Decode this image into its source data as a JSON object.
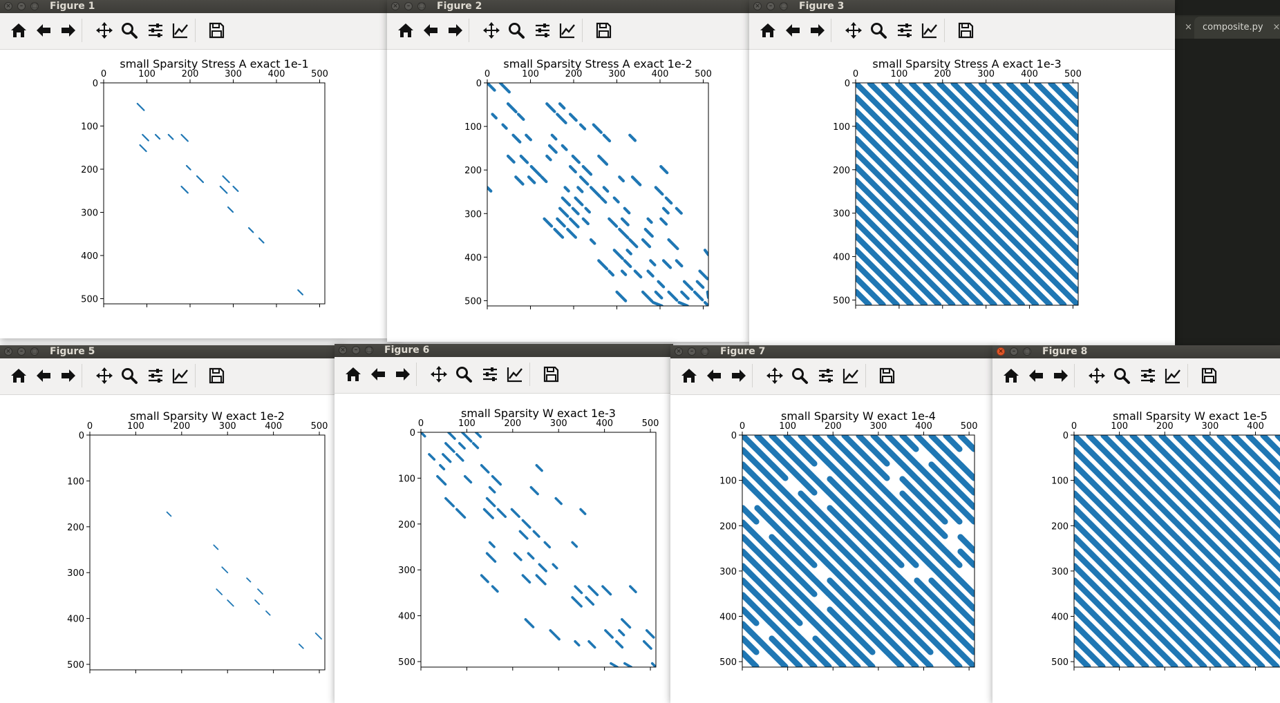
{
  "editor": {
    "tabs": [
      {
        "label": "composite.py",
        "close": "×"
      }
    ],
    "partial_tab_close": "×"
  },
  "colors": {
    "marker": "#1f77b4",
    "titlebar": "#3c3b37",
    "toolbar": "#f2f1f0",
    "close_active": "#e2582a"
  },
  "toolbar_icons": [
    "home-icon",
    "back-arrow-icon",
    "forward-arrow-icon",
    "pan-icon",
    "zoom-icon",
    "subplots-icon",
    "edit-axes-icon",
    "save-icon"
  ],
  "figures": [
    {
      "id": "fig1",
      "window_title": "Figure 1",
      "active": false,
      "chart_data": {
        "type": "scatter",
        "title": "small Sparsity Stress A exact 1e-1",
        "xticks": [
          "0",
          "100",
          "200",
          "300",
          "400",
          "500"
        ],
        "yticks": [
          "0",
          "100",
          "200",
          "300",
          "400",
          "500"
        ],
        "xlim": [
          0,
          512
        ],
        "ylim": [
          512,
          0
        ],
        "density": 0.12
      }
    },
    {
      "id": "fig2",
      "window_title": "Figure 2",
      "active": false,
      "chart_data": {
        "type": "scatter",
        "title": "small Sparsity Stress A exact 1e-2",
        "xticks": [
          "0",
          "100",
          "200",
          "300",
          "400",
          "500"
        ],
        "yticks": [
          "0",
          "100",
          "200",
          "300",
          "400",
          "500"
        ],
        "xlim": [
          0,
          512
        ],
        "ylim": [
          512,
          0
        ],
        "density": 0.45
      }
    },
    {
      "id": "fig3",
      "window_title": "Figure 3",
      "active": false,
      "chart_data": {
        "type": "scatter",
        "title": "small Sparsity Stress A exact 1e-3",
        "xticks": [
          "0",
          "100",
          "200",
          "300",
          "400",
          "500"
        ],
        "yticks": [
          "0",
          "100",
          "200",
          "300",
          "400",
          "500"
        ],
        "xlim": [
          0,
          512
        ],
        "ylim": [
          512,
          0
        ],
        "density": 1.0
      }
    },
    {
      "id": "fig5",
      "window_title": "Figure 5",
      "active": false,
      "chart_data": {
        "type": "scatter",
        "title": "small Sparsity W exact 1e-2",
        "xticks": [
          "0",
          "100",
          "200",
          "300",
          "400",
          "500"
        ],
        "yticks": [
          "0",
          "100",
          "200",
          "300",
          "400",
          "500"
        ],
        "xlim": [
          0,
          512
        ],
        "ylim": [
          512,
          0
        ],
        "density": 0.05
      }
    },
    {
      "id": "fig6",
      "window_title": "Figure 6",
      "active": false,
      "chart_data": {
        "type": "scatter",
        "title": "small Sparsity W exact 1e-3",
        "xticks": [
          "0",
          "100",
          "200",
          "300",
          "400",
          "500"
        ],
        "yticks": [
          "0",
          "100",
          "200",
          "300",
          "400",
          "500"
        ],
        "xlim": [
          0,
          512
        ],
        "ylim": [
          512,
          0
        ],
        "density": 0.35
      }
    },
    {
      "id": "fig7",
      "window_title": "Figure 7",
      "active": false,
      "chart_data": {
        "type": "scatter",
        "title": "small Sparsity W exact 1e-4",
        "xticks": [
          "0",
          "100",
          "200",
          "300",
          "400",
          "500"
        ],
        "yticks": [
          "0",
          "100",
          "200",
          "300",
          "400",
          "500"
        ],
        "xlim": [
          0,
          512
        ],
        "ylim": [
          512,
          0
        ],
        "density": 0.85
      }
    },
    {
      "id": "fig8",
      "window_title": "Figure 8",
      "active": true,
      "chart_data": {
        "type": "scatter",
        "title": "small Sparsity W exact 1e-5",
        "xticks": [
          "0",
          "100",
          "200",
          "300",
          "400"
        ],
        "yticks": [
          "0",
          "100",
          "200",
          "300",
          "400",
          "500"
        ],
        "xlim": [
          0,
          512
        ],
        "ylim": [
          512,
          0
        ],
        "density": 1.0
      }
    }
  ]
}
